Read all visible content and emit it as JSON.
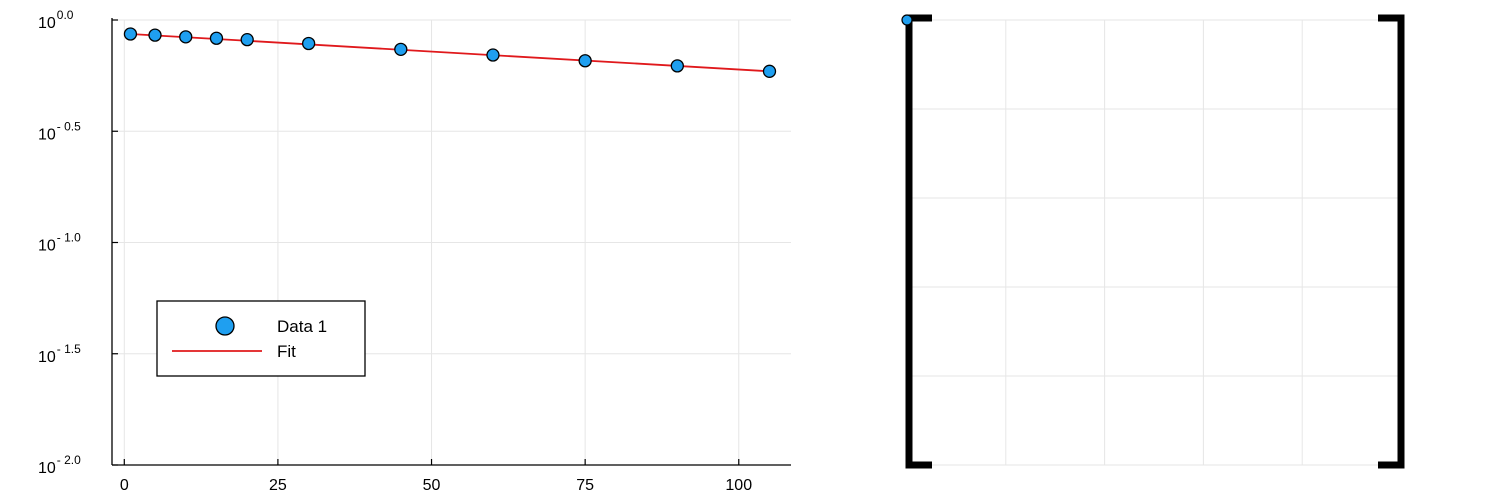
{
  "chart_data": [
    {
      "type": "scatter",
      "title": "",
      "xlabel": "",
      "ylabel": "",
      "y_scale": "log10",
      "xlim": [
        -2,
        108.5
      ],
      "ylim_log10": [
        -2.0,
        0.0
      ],
      "xticks": [
        0,
        25,
        50,
        75,
        100
      ],
      "xtick_labels": [
        "0",
        "25",
        "50",
        "75",
        "100"
      ],
      "yticks_log10": [
        0.0,
        -0.5,
        -1.0,
        -1.5,
        -2.0
      ],
      "ytick_labels": [
        {
          "base": "10",
          "exp": "0.0"
        },
        {
          "base": "10",
          "exp": "- 0.5"
        },
        {
          "base": "10",
          "exp": "- 1.0"
        },
        {
          "base": "10",
          "exp": "- 1.5"
        },
        {
          "base": "10",
          "exp": "- 2.0"
        }
      ],
      "grid": true,
      "legend": "bottom-left",
      "series": [
        {
          "name": "Data 1",
          "kind": "scatter",
          "color": "#1f9ff0",
          "x": [
            1,
            5,
            10,
            15,
            20,
            30,
            45,
            60,
            75,
            90,
            105
          ],
          "y": [
            0.865,
            0.855,
            0.84,
            0.828,
            0.816,
            0.784,
            0.738,
            0.696,
            0.656,
            0.622,
            0.588
          ]
        },
        {
          "name": "Fit",
          "kind": "line",
          "color": "#e0191c",
          "x": [
            1,
            105
          ],
          "y": [
            0.865,
            0.588
          ]
        }
      ]
    },
    {
      "type": "scatter",
      "title": "",
      "xlabel": "",
      "ylabel": "",
      "grid": true,
      "xticks_count": 5,
      "yticks_count": 5,
      "series": [
        {
          "kind": "scatter",
          "color": "#1f9ff0",
          "x": [
            0
          ],
          "y": [
            1
          ]
        }
      ],
      "note_glyph": "matrix-brackets"
    }
  ]
}
